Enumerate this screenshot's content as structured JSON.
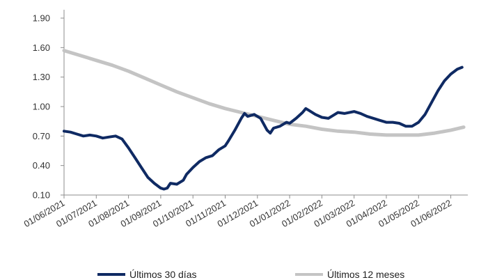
{
  "chart_data": {
    "type": "line",
    "title": "",
    "xlabel": "",
    "ylabel": "",
    "ylim": [
      0.1,
      1.9
    ],
    "yticks": [
      "0.10",
      "0.40",
      "0.70",
      "1.00",
      "1.30",
      "1.60",
      "1.90"
    ],
    "ytick_values": [
      0.1,
      0.4,
      0.7,
      1.0,
      1.3,
      1.6,
      1.9
    ],
    "xticks": [
      "01/06/2021",
      "01/07/2021",
      "01/08/2021",
      "01/09/2021",
      "01/10/2021",
      "01/11/2021",
      "01/12/2021",
      "01/01/2022",
      "01/02/2022",
      "01/03/2022",
      "01/04/2022",
      "01/05/2022",
      "01/06/2022"
    ],
    "x_range": [
      0,
      12.4
    ],
    "grid": false,
    "legend_position": "bottom",
    "series": [
      {
        "name": "Últimos 30 días",
        "color": "#0f2a63",
        "points": [
          [
            0.0,
            0.75
          ],
          [
            0.2,
            0.74
          ],
          [
            0.4,
            0.72
          ],
          [
            0.6,
            0.7
          ],
          [
            0.8,
            0.71
          ],
          [
            1.0,
            0.7
          ],
          [
            1.2,
            0.68
          ],
          [
            1.4,
            0.69
          ],
          [
            1.6,
            0.7
          ],
          [
            1.8,
            0.67
          ],
          [
            2.0,
            0.58
          ],
          [
            2.2,
            0.48
          ],
          [
            2.4,
            0.38
          ],
          [
            2.6,
            0.28
          ],
          [
            2.8,
            0.22
          ],
          [
            3.0,
            0.17
          ],
          [
            3.1,
            0.16
          ],
          [
            3.2,
            0.17
          ],
          [
            3.3,
            0.22
          ],
          [
            3.5,
            0.21
          ],
          [
            3.7,
            0.25
          ],
          [
            3.8,
            0.31
          ],
          [
            4.0,
            0.38
          ],
          [
            4.2,
            0.44
          ],
          [
            4.4,
            0.48
          ],
          [
            4.6,
            0.5
          ],
          [
            4.8,
            0.56
          ],
          [
            5.0,
            0.6
          ],
          [
            5.1,
            0.65
          ],
          [
            5.3,
            0.76
          ],
          [
            5.5,
            0.88
          ],
          [
            5.6,
            0.93
          ],
          [
            5.7,
            0.9
          ],
          [
            5.9,
            0.92
          ],
          [
            6.1,
            0.88
          ],
          [
            6.3,
            0.76
          ],
          [
            6.4,
            0.73
          ],
          [
            6.5,
            0.78
          ],
          [
            6.7,
            0.8
          ],
          [
            6.9,
            0.84
          ],
          [
            7.0,
            0.83
          ],
          [
            7.2,
            0.88
          ],
          [
            7.4,
            0.94
          ],
          [
            7.5,
            0.98
          ],
          [
            7.6,
            0.96
          ],
          [
            7.8,
            0.92
          ],
          [
            8.0,
            0.89
          ],
          [
            8.2,
            0.88
          ],
          [
            8.4,
            0.92
          ],
          [
            8.5,
            0.94
          ],
          [
            8.7,
            0.93
          ],
          [
            9.0,
            0.95
          ],
          [
            9.2,
            0.93
          ],
          [
            9.4,
            0.9
          ],
          [
            9.6,
            0.88
          ],
          [
            9.8,
            0.86
          ],
          [
            10.0,
            0.84
          ],
          [
            10.2,
            0.84
          ],
          [
            10.4,
            0.83
          ],
          [
            10.6,
            0.8
          ],
          [
            10.8,
            0.8
          ],
          [
            11.0,
            0.84
          ],
          [
            11.2,
            0.92
          ],
          [
            11.4,
            1.04
          ],
          [
            11.6,
            1.16
          ],
          [
            11.8,
            1.26
          ],
          [
            12.0,
            1.33
          ],
          [
            12.2,
            1.38
          ],
          [
            12.35,
            1.4
          ]
        ]
      },
      {
        "name": "Últimos 12 meses",
        "color": "#c4c4c4",
        "points": [
          [
            0.0,
            1.57
          ],
          [
            0.5,
            1.52
          ],
          [
            1.0,
            1.47
          ],
          [
            1.5,
            1.42
          ],
          [
            2.0,
            1.36
          ],
          [
            2.5,
            1.29
          ],
          [
            3.0,
            1.22
          ],
          [
            3.5,
            1.15
          ],
          [
            4.0,
            1.09
          ],
          [
            4.5,
            1.03
          ],
          [
            5.0,
            0.98
          ],
          [
            5.5,
            0.94
          ],
          [
            6.0,
            0.9
          ],
          [
            6.5,
            0.86
          ],
          [
            7.0,
            0.82
          ],
          [
            7.5,
            0.8
          ],
          [
            8.0,
            0.77
          ],
          [
            8.5,
            0.75
          ],
          [
            9.0,
            0.74
          ],
          [
            9.5,
            0.72
          ],
          [
            10.0,
            0.71
          ],
          [
            10.5,
            0.71
          ],
          [
            11.0,
            0.71
          ],
          [
            11.5,
            0.73
          ],
          [
            12.0,
            0.76
          ],
          [
            12.4,
            0.79
          ]
        ]
      }
    ]
  }
}
